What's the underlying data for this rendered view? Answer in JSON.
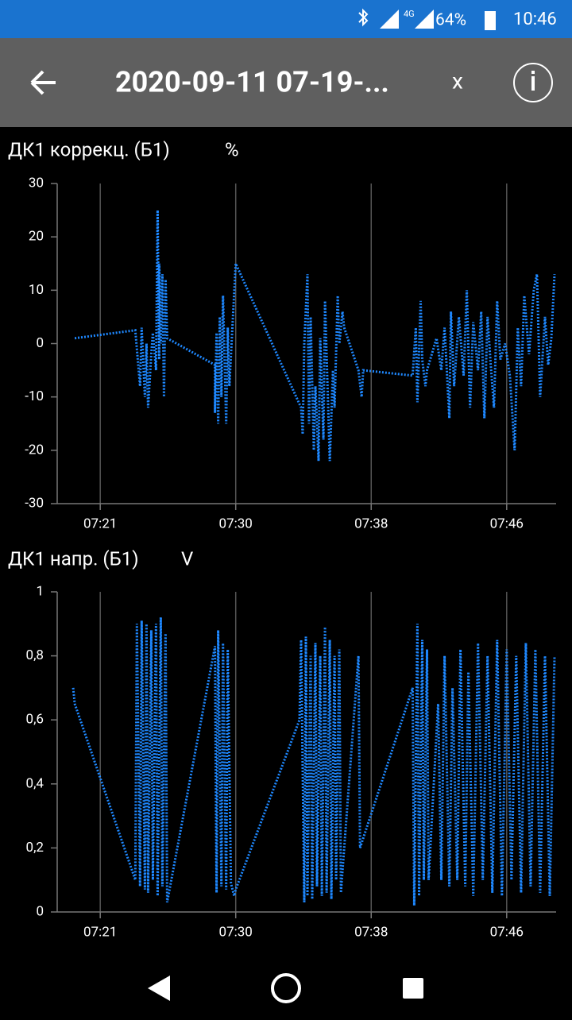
{
  "status_bar": {
    "network": "4G",
    "battery": "64%",
    "time": "10:46"
  },
  "app_bar": {
    "title": "2020-09-11 07-19-...",
    "close": "x"
  },
  "chart_data": [
    {
      "type": "line",
      "title": "ДК1 коррекц. (Б1)",
      "unit": "%",
      "x": [
        439.7,
        443.5,
        443.8,
        443.9,
        444.1,
        444.2,
        444.3,
        444.5,
        444.6,
        444.8,
        444.9,
        445.0,
        445.0,
        445.1,
        445.2,
        445.3,
        445.4,
        445.5,
        448.5,
        448.5,
        448.6,
        448.7,
        448.8,
        448.9,
        449.0,
        449.2,
        449.3,
        449.4,
        449.8,
        453.9,
        454.0,
        454.1,
        454.3,
        454.4,
        454.5,
        454.7,
        454.8,
        455.0,
        455.1,
        455.3,
        455.4,
        455.6,
        455.7,
        455.9,
        456.0,
        456.2,
        456.3,
        456.5,
        456.6,
        457.5,
        457.7,
        457.8,
        460.9,
        461.1,
        461.2,
        461.4,
        461.5,
        461.7,
        461.8,
        462.4,
        462.7,
        462.9,
        463.2,
        463.3,
        463.5,
        463.8,
        464.1,
        464.3,
        464.5,
        464.7,
        465.0,
        465.2,
        465.4,
        465.6,
        465.8,
        466.0,
        466.2,
        466.4,
        466.7,
        467.0,
        467.3,
        467.5,
        467.7,
        467.9,
        468.2,
        468.5,
        468.7,
        468.9,
        469.2,
        469.4,
        469.6,
        469.8
      ],
      "series": [
        {
          "color": "#1e88ff",
          "values": [
            1,
            2.5,
            -8,
            3,
            -10,
            0,
            -12,
            -2,
            2,
            -5,
            25,
            -3,
            15,
            0,
            13,
            -10,
            12,
            1,
            -4,
            -13,
            2,
            -15,
            5,
            -10,
            9,
            -15,
            3,
            -8,
            15,
            -12,
            -17,
            0,
            13,
            -15,
            5,
            -20,
            -8,
            -22,
            1,
            -18,
            8,
            -12,
            -22,
            -5,
            -12,
            9,
            0,
            6,
            3,
            -5,
            -10,
            -5,
            -6,
            3,
            -11,
            8,
            -3,
            -8,
            -5,
            1,
            -5,
            3,
            -14,
            6,
            -8,
            5,
            -6,
            10,
            -12,
            4,
            -5,
            6,
            -14,
            5,
            -4,
            -12,
            8,
            -3,
            0,
            -6,
            -20,
            3,
            -8,
            9,
            -2,
            10,
            13,
            -10,
            5,
            -4,
            1,
            13
          ]
        }
      ],
      "xlim": [
        438.6,
        469.9
      ],
      "xticks": [
        {
          "value": 441.3,
          "label": "07:21"
        },
        {
          "value": 449.8,
          "label": "07:30"
        },
        {
          "value": 458.3,
          "label": "07:38"
        },
        {
          "value": 466.8,
          "label": "07:46"
        }
      ],
      "ylim": [
        -30,
        30
      ],
      "yticks": [
        -30,
        -20,
        -10,
        0,
        10,
        20,
        30
      ],
      "grid": true
    },
    {
      "type": "line",
      "title": "ДК1 напр. (Б1)",
      "unit": "V",
      "x": [
        439.6,
        439.7,
        443.5,
        443.6,
        443.8,
        443.9,
        444.1,
        444.2,
        444.3,
        444.5,
        444.6,
        444.8,
        444.9,
        445.1,
        445.2,
        445.4,
        445.5,
        448.5,
        448.6,
        448.7,
        448.9,
        449.0,
        449.2,
        449.3,
        449.5,
        449.7,
        449.8,
        453.8,
        453.9,
        454.1,
        454.2,
        454.3,
        454.5,
        454.6,
        454.8,
        454.9,
        455.1,
        455.2,
        455.4,
        455.5,
        455.7,
        455.8,
        456.0,
        456.1,
        456.3,
        456.4,
        457.5,
        457.6,
        460.9,
        461.0,
        461.2,
        461.3,
        461.5,
        461.6,
        461.8,
        461.9,
        462.5,
        462.7,
        462.9,
        463.2,
        463.4,
        463.7,
        463.9,
        464.2,
        464.4,
        464.7,
        465.0,
        465.3,
        465.6,
        465.9,
        466.2,
        466.5,
        466.8,
        467.1,
        467.4,
        467.7,
        468.0,
        468.3,
        468.6,
        468.9,
        469.2,
        469.5,
        469.8
      ],
      "series": [
        {
          "color": "#1e88ff",
          "values": [
            0.7,
            0.65,
            0.1,
            0.9,
            0.08,
            0.91,
            0.07,
            0.9,
            0.06,
            0.88,
            0.1,
            0.9,
            0.05,
            0.92,
            0.08,
            0.87,
            0.03,
            0.83,
            0.06,
            0.88,
            0.08,
            0.84,
            0.07,
            0.82,
            0.09,
            0.05,
            0.07,
            0.6,
            0.85,
            0.03,
            0.86,
            0.05,
            0.8,
            0.04,
            0.84,
            0.08,
            0.8,
            0.05,
            0.89,
            0.06,
            0.85,
            0.04,
            0.8,
            0.1,
            0.82,
            0.06,
            0.8,
            0.2,
            0.7,
            0.02,
            0.9,
            0.05,
            0.85,
            0.1,
            0.82,
            0.1,
            0.65,
            0.1,
            0.8,
            0.08,
            0.7,
            0.1,
            0.82,
            0.08,
            0.75,
            0.05,
            0.84,
            0.1,
            0.8,
            0.06,
            0.85,
            0.05,
            0.82,
            0.1,
            0.8,
            0.06,
            0.84,
            0.08,
            0.82,
            0.06,
            0.8,
            0.05,
            0.8
          ]
        }
      ],
      "xlim": [
        438.6,
        469.9
      ],
      "xticks": [
        {
          "value": 441.3,
          "label": "07:21"
        },
        {
          "value": 449.8,
          "label": "07:30"
        },
        {
          "value": 458.3,
          "label": "07:38"
        },
        {
          "value": 466.8,
          "label": "07:46"
        }
      ],
      "ylim": [
        0,
        1
      ],
      "yticks": [
        0,
        {
          "value": 0.2,
          "label": "0,2"
        },
        {
          "value": 0.4,
          "label": "0,4"
        },
        {
          "value": 0.6,
          "label": "0,6"
        },
        {
          "value": 0.8,
          "label": "0,8"
        },
        1
      ],
      "grid": true
    }
  ]
}
